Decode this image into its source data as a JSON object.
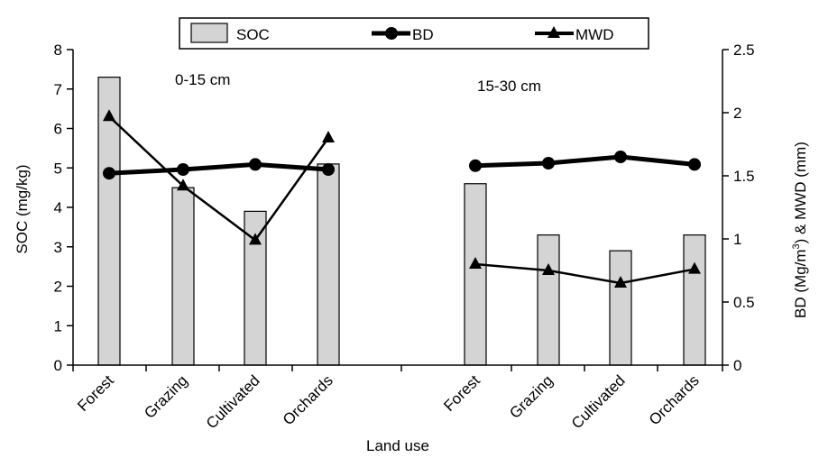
{
  "chart_data": {
    "type": "bar",
    "categories": [
      "Forest",
      "Grazing",
      "Cultivated",
      "Orchards",
      "Forest",
      "Grazing",
      "Cultivated",
      "Orchards"
    ],
    "groups": [
      {
        "label": "0-15 cm",
        "indices": [
          0,
          1,
          2,
          3
        ]
      },
      {
        "label": "15-30 cm",
        "indices": [
          4,
          5,
          6,
          7
        ]
      }
    ],
    "series": [
      {
        "name": "SOC",
        "type": "bar",
        "axis": "left",
        "values": [
          7.3,
          4.5,
          3.9,
          5.1,
          4.6,
          3.3,
          2.9,
          3.3
        ]
      },
      {
        "name": "BD",
        "type": "line",
        "axis": "right",
        "marker": "circle",
        "values": [
          1.52,
          1.55,
          1.59,
          1.55,
          1.58,
          1.6,
          1.65,
          1.59
        ]
      },
      {
        "name": "MWD",
        "type": "line",
        "axis": "right",
        "marker": "triangle",
        "values": [
          1.97,
          1.42,
          0.99,
          1.8,
          0.8,
          0.75,
          0.65,
          0.76
        ]
      }
    ],
    "xlabel": "Land use",
    "ylabel": "SOC (mg/kg)",
    "ylabel_right_pre": "BD (Mg/m",
    "ylabel_right_sup": "3",
    "ylabel_right_post": ") & MWD (mm)",
    "ylim": [
      0,
      8
    ],
    "yticks": [
      "0",
      "1",
      "2",
      "3",
      "4",
      "5",
      "6",
      "7",
      "8"
    ],
    "ylim_right": [
      0,
      2.5
    ],
    "yticks_right": [
      "0",
      "0.5",
      "1",
      "1.5",
      "2",
      "2.5"
    ],
    "legend_position": "top-center",
    "grid": false,
    "colors": {
      "bar_fill": "#d4d4d4",
      "bar_stroke": "#000000",
      "line": "#000000"
    }
  }
}
